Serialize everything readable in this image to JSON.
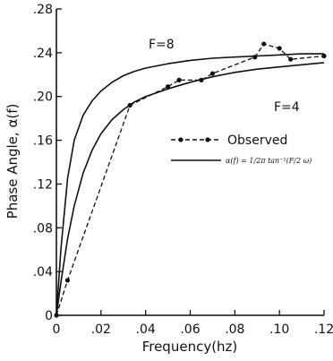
{
  "chart_data": {
    "type": "line",
    "xlabel": "Frequency(hz)",
    "ylabel": "Phase Angle, α(f)",
    "xlim": [
      0,
      0.12
    ],
    "ylim": [
      0,
      0.28
    ],
    "x_ticks": [
      "0",
      ".02",
      ".04",
      ".06",
      ".08",
      ".10",
      ".12"
    ],
    "y_ticks": [
      "0",
      ".04",
      ".08",
      ".12",
      ".16",
      ".20",
      ".24",
      ".28"
    ],
    "x_tick_values": [
      0,
      0.02,
      0.04,
      0.06,
      0.08,
      0.1,
      0.12
    ],
    "y_tick_values": [
      0,
      0.04,
      0.08,
      0.12,
      0.16,
      0.2,
      0.24,
      0.28
    ],
    "grid": false,
    "legend_position": "middle-right",
    "curve_labels": {
      "f8": "F=8",
      "f4": "F=4"
    },
    "legend": {
      "observed_label": "Observed",
      "model_label": "α(f) = 1/2π tan⁻¹(F/2 ω)"
    },
    "series": [
      {
        "style": "solid",
        "x": [
          0,
          0.002,
          0.005,
          0.008,
          0.012,
          0.016,
          0.02,
          0.025,
          0.03,
          0.035,
          0.04,
          0.05,
          0.06,
          0.07,
          0.08,
          0.09,
          0.1,
          0.11,
          0.12
        ],
        "y": [
          0,
          0.06,
          0.125,
          0.16,
          0.183,
          0.196,
          0.205,
          0.213,
          0.219,
          0.223,
          0.226,
          0.23,
          0.233,
          0.235,
          0.236,
          0.237,
          0.238,
          0.239,
          0.239
        ]
      },
      {
        "style": "solid",
        "x": [
          0,
          0.002,
          0.005,
          0.008,
          0.012,
          0.016,
          0.02,
          0.025,
          0.03,
          0.035,
          0.04,
          0.05,
          0.06,
          0.07,
          0.08,
          0.09,
          0.1,
          0.11,
          0.12
        ],
        "y": [
          0,
          0.03,
          0.07,
          0.1,
          0.13,
          0.151,
          0.166,
          0.179,
          0.188,
          0.195,
          0.2,
          0.207,
          0.213,
          0.218,
          0.222,
          0.225,
          0.227,
          0.229,
          0.231
        ]
      },
      {
        "name": "Observed",
        "style": "dashed-markers",
        "x": [
          0,
          0.005,
          0.033,
          0.05,
          0.055,
          0.065,
          0.07,
          0.089,
          0.093,
          0.1,
          0.105,
          0.12
        ],
        "y": [
          0,
          0.032,
          0.192,
          0.209,
          0.215,
          0.215,
          0.221,
          0.236,
          0.248,
          0.244,
          0.234,
          0.237
        ]
      }
    ]
  }
}
